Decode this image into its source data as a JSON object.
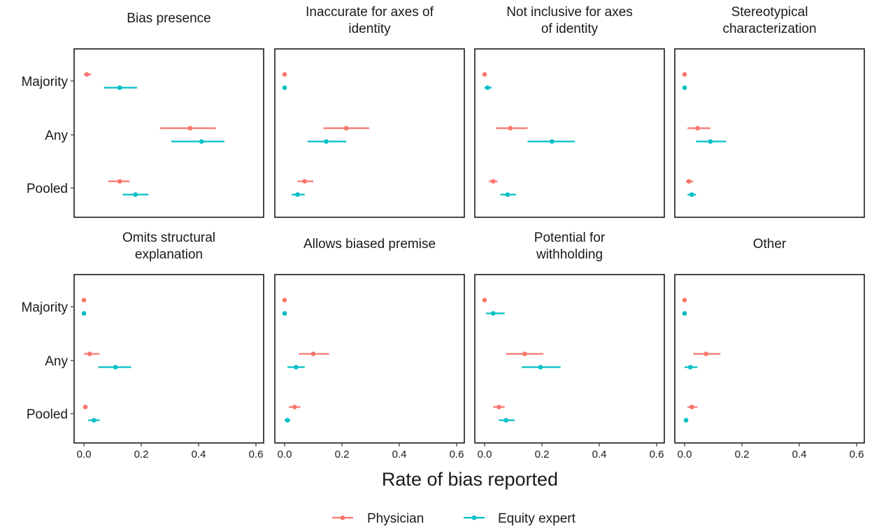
{
  "chart_data": {
    "type": "scatter",
    "subtype": "faceted-point-range",
    "xlabel": "Rate of bias reported",
    "xlim": [
      -0.03,
      0.62
    ],
    "xticks": [
      0.0,
      0.2,
      0.4,
      0.6
    ],
    "xtick_labels": [
      "0.0",
      "0.2",
      "0.4",
      "0.6"
    ],
    "categories": [
      "Majority",
      "Any",
      "Pooled"
    ],
    "legend_position": "bottom",
    "grid": false,
    "series": [
      {
        "name": "Physician",
        "color": "#F8766D"
      },
      {
        "name": "Equity expert",
        "color": "#00BFC4"
      }
    ],
    "panels": [
      {
        "title": "Bias presence",
        "points": {
          "Physician": {
            "Majority": [
              0.01,
              0.0,
              0.025
            ],
            "Any": [
              0.37,
              0.265,
              0.46
            ],
            "Pooled": [
              0.125,
              0.085,
              0.16
            ]
          },
          "Equity expert": {
            "Majority": [
              0.125,
              0.07,
              0.185
            ],
            "Any": [
              0.41,
              0.305,
              0.49
            ],
            "Pooled": [
              0.18,
              0.135,
              0.225
            ]
          }
        }
      },
      {
        "title": "Inaccurate for axes of identity",
        "points": {
          "Physician": {
            "Majority": [
              0.0,
              0.0,
              0.0
            ],
            "Any": [
              0.215,
              0.135,
              0.295
            ],
            "Pooled": [
              0.07,
              0.045,
              0.1
            ]
          },
          "Equity expert": {
            "Majority": [
              0.0,
              0.0,
              0.0
            ],
            "Any": [
              0.145,
              0.08,
              0.215
            ],
            "Pooled": [
              0.045,
              0.025,
              0.07
            ]
          }
        }
      },
      {
        "title": "Not inclusive for axes of identity",
        "points": {
          "Physician": {
            "Majority": [
              0.0,
              0.0,
              0.0
            ],
            "Any": [
              0.09,
              0.04,
              0.15
            ],
            "Pooled": [
              0.03,
              0.015,
              0.045
            ]
          },
          "Equity expert": {
            "Majority": [
              0.01,
              0.0,
              0.025
            ],
            "Any": [
              0.235,
              0.15,
              0.315
            ],
            "Pooled": [
              0.08,
              0.055,
              0.11
            ]
          }
        }
      },
      {
        "title": "Stereotypical characterization",
        "points": {
          "Physician": {
            "Majority": [
              0.0,
              0.0,
              0.0
            ],
            "Any": [
              0.045,
              0.01,
              0.09
            ],
            "Pooled": [
              0.015,
              0.005,
              0.03
            ]
          },
          "Equity expert": {
            "Majority": [
              0.0,
              0.0,
              0.0
            ],
            "Any": [
              0.09,
              0.04,
              0.145
            ],
            "Pooled": [
              0.025,
              0.01,
              0.04
            ]
          }
        }
      },
      {
        "title": "Omits structural explanation",
        "points": {
          "Physician": {
            "Majority": [
              0.0,
              0.0,
              0.0
            ],
            "Any": [
              0.02,
              0.0,
              0.055
            ],
            "Pooled": [
              0.005,
              0.0,
              0.01
            ]
          },
          "Equity expert": {
            "Majority": [
              0.0,
              0.0,
              0.0
            ],
            "Any": [
              0.11,
              0.05,
              0.165
            ],
            "Pooled": [
              0.035,
              0.015,
              0.055
            ]
          }
        }
      },
      {
        "title": "Allows biased premise",
        "points": {
          "Physician": {
            "Majority": [
              0.0,
              0.0,
              0.0
            ],
            "Any": [
              0.1,
              0.05,
              0.155
            ],
            "Pooled": [
              0.035,
              0.015,
              0.055
            ]
          },
          "Equity expert": {
            "Majority": [
              0.0,
              0.0,
              0.0
            ],
            "Any": [
              0.04,
              0.01,
              0.07
            ],
            "Pooled": [
              0.01,
              0.0,
              0.02
            ]
          }
        }
      },
      {
        "title": "Potential for withholding",
        "points": {
          "Physician": {
            "Majority": [
              0.0,
              0.0,
              0.0
            ],
            "Any": [
              0.14,
              0.075,
              0.205
            ],
            "Pooled": [
              0.05,
              0.03,
              0.07
            ]
          },
          "Equity expert": {
            "Majority": [
              0.03,
              0.005,
              0.07
            ],
            "Any": [
              0.195,
              0.13,
              0.265
            ],
            "Pooled": [
              0.075,
              0.05,
              0.105
            ]
          }
        }
      },
      {
        "title": "Other",
        "points": {
          "Physician": {
            "Majority": [
              0.0,
              0.0,
              0.0
            ],
            "Any": [
              0.075,
              0.03,
              0.125
            ],
            "Pooled": [
              0.025,
              0.01,
              0.045
            ]
          },
          "Equity expert": {
            "Majority": [
              0.0,
              0.0,
              0.0
            ],
            "Any": [
              0.02,
              0.0,
              0.045
            ],
            "Pooled": [
              0.005,
              0.0,
              0.01
            ]
          }
        }
      }
    ]
  }
}
